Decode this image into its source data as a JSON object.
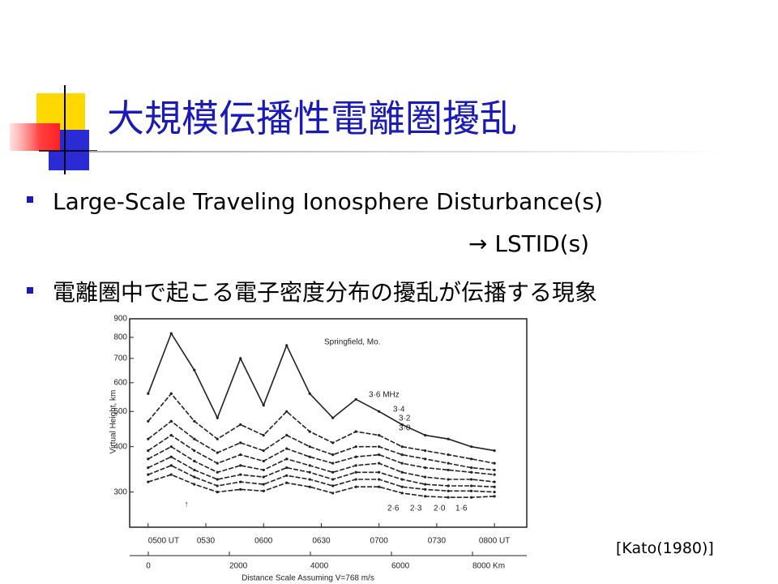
{
  "slide": {
    "title": "大規模伝播性電離圏擾乱",
    "bullets": [
      "Large-Scale Traveling Ionosphere Disturbance(s)",
      "電離圏中で起こる電子密度分布の擾乱が伝播する現象"
    ],
    "arrow_text": "→ LSTID(s)",
    "citation": "[Kato(1980)]"
  },
  "chart_data": {
    "type": "line",
    "title": "Springfield, Mo.",
    "y_label": "Virtual Height, km",
    "x2_label": "Distance Scale Assuming V=768 m/s",
    "x": [
      5.0,
      5.2,
      5.4,
      5.6,
      5.8,
      6.0,
      6.2,
      6.4,
      6.6,
      6.8,
      7.0,
      7.2,
      7.4,
      7.6,
      7.8,
      8.0
    ],
    "xlim": [
      4.84,
      8.28
    ],
    "xticks": [
      {
        "value": 5.0,
        "label": "0500 UT"
      },
      {
        "value": 5.5,
        "label": "0530"
      },
      {
        "value": 6.0,
        "label": "0600"
      },
      {
        "value": 6.5,
        "label": "0630"
      },
      {
        "value": 7.0,
        "label": "0700"
      },
      {
        "value": 7.5,
        "label": "0730"
      },
      {
        "value": 8.0,
        "label": "0800 UT"
      }
    ],
    "x2lim": [
      -460,
      9340
    ],
    "x2ticks": [
      0,
      2000,
      4000,
      6000,
      {
        "value": 8000,
        "label": "8000 Km"
      }
    ],
    "ylim": [
      240,
      900
    ],
    "log_y": true,
    "yticks": [
      300,
      400,
      500,
      600,
      700,
      800,
      900
    ],
    "grid": false,
    "series": [
      {
        "name": "3·6 MHz",
        "color": "#222",
        "values": [
          560,
          820,
          650,
          480,
          700,
          520,
          760,
          560,
          480,
          540,
          500,
          460,
          430,
          420,
          400,
          390
        ]
      },
      {
        "name": "3·4",
        "color": "#222",
        "values": [
          470,
          560,
          470,
          420,
          460,
          430,
          500,
          440,
          410,
          440,
          430,
          400,
          390,
          380,
          370,
          360
        ]
      },
      {
        "name": "3·2",
        "color": "#222",
        "values": [
          420,
          470,
          420,
          385,
          410,
          390,
          430,
          400,
          380,
          400,
          400,
          380,
          370,
          360,
          350,
          345
        ]
      },
      {
        "name": "3·0",
        "color": "#222",
        "values": [
          390,
          430,
          390,
          360,
          380,
          365,
          395,
          375,
          360,
          375,
          380,
          360,
          350,
          345,
          340,
          335
        ]
      },
      {
        "name": "2·6",
        "color": "#222",
        "values": [
          370,
          400,
          365,
          340,
          355,
          345,
          370,
          355,
          340,
          355,
          360,
          340,
          330,
          325,
          325,
          320
        ]
      },
      {
        "name": "2·3",
        "color": "#222",
        "values": [
          350,
          375,
          345,
          325,
          335,
          330,
          350,
          340,
          325,
          340,
          340,
          325,
          315,
          312,
          312,
          310
        ]
      },
      {
        "name": "2·0",
        "color": "#222",
        "values": [
          335,
          355,
          330,
          312,
          320,
          315,
          333,
          325,
          312,
          325,
          325,
          310,
          305,
          302,
          302,
          300
        ]
      },
      {
        "name": "1·6",
        "color": "#222",
        "values": [
          320,
          335,
          315,
          300,
          305,
          302,
          318,
          310,
          298,
          310,
          310,
          298,
          292,
          290,
          290,
          292
        ]
      }
    ]
  }
}
